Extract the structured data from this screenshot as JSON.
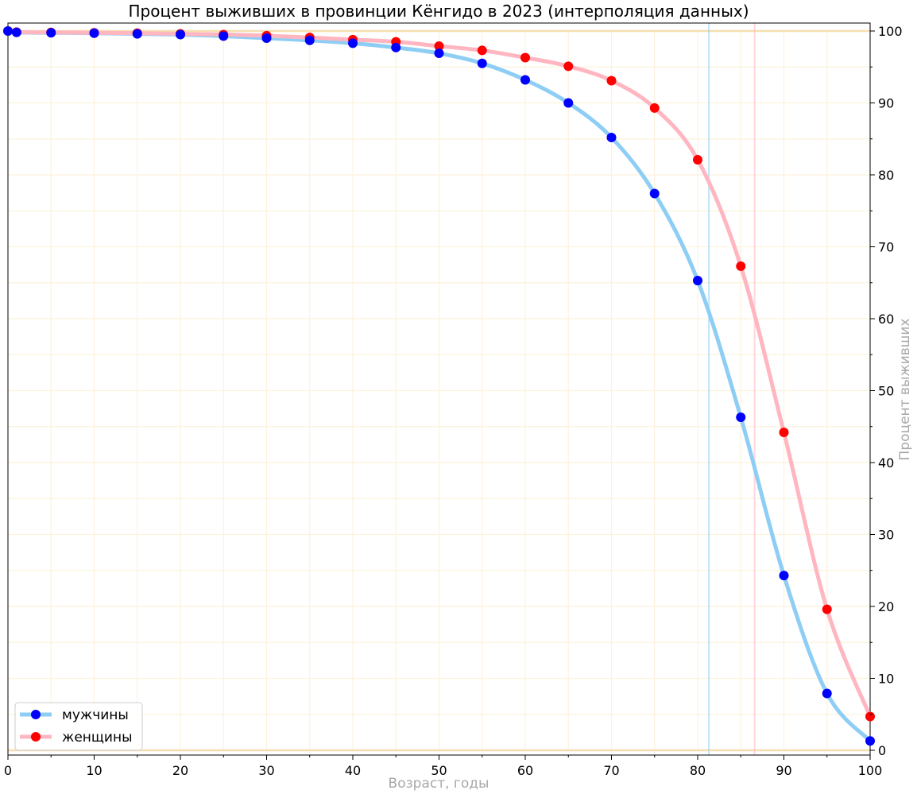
{
  "chart_data": {
    "type": "line",
    "title": "Процент выживших в провинции Кёнгидо в 2023   (интерполяция данных)",
    "xlabel": "Возраст, годы",
    "ylabel": "Процент выживших",
    "xlim": [
      0,
      100
    ],
    "ylim": [
      0,
      100
    ],
    "x_ticks": [
      "0",
      "10",
      "20",
      "30",
      "40",
      "50",
      "60",
      "70",
      "80",
      "90",
      "100"
    ],
    "y_ticks": [
      "0",
      "10",
      "20",
      "30",
      "40",
      "50",
      "60",
      "70",
      "80",
      "90",
      "100"
    ],
    "y_axis_side": "right",
    "grid": true,
    "legend_position": "lower-left",
    "series": [
      {
        "name": "мужчины",
        "line_color": "#8ecef5",
        "marker_color": "#0000ff",
        "x": [
          0,
          1,
          5,
          10,
          15,
          20,
          25,
          30,
          35,
          40,
          45,
          50,
          55,
          60,
          65,
          70,
          75,
          80,
          85,
          90,
          95,
          100
        ],
        "values": [
          100,
          99.8,
          99.75,
          99.7,
          99.6,
          99.5,
          99.3,
          99.0,
          98.7,
          98.3,
          97.7,
          96.9,
          95.5,
          93.2,
          90.0,
          85.2,
          77.4,
          65.3,
          46.3,
          24.3,
          7.9,
          1.3
        ],
        "reference_age": 81.3
      },
      {
        "name": "женщины",
        "line_color": "#ffb6c1",
        "marker_color": "#ff0000",
        "x": [
          0,
          1,
          5,
          10,
          15,
          20,
          25,
          30,
          35,
          40,
          45,
          50,
          55,
          60,
          65,
          70,
          75,
          80,
          85,
          90,
          95,
          100
        ],
        "values": [
          100,
          99.85,
          99.8,
          99.75,
          99.7,
          99.6,
          99.5,
          99.35,
          99.1,
          98.8,
          98.5,
          97.9,
          97.3,
          96.3,
          95.1,
          93.1,
          89.3,
          82.1,
          67.3,
          44.2,
          19.6,
          4.7
        ],
        "reference_age": 86.6
      }
    ],
    "colors": {
      "grid": "#fdf2dc",
      "boundary_lines": "#f6deb0"
    }
  }
}
